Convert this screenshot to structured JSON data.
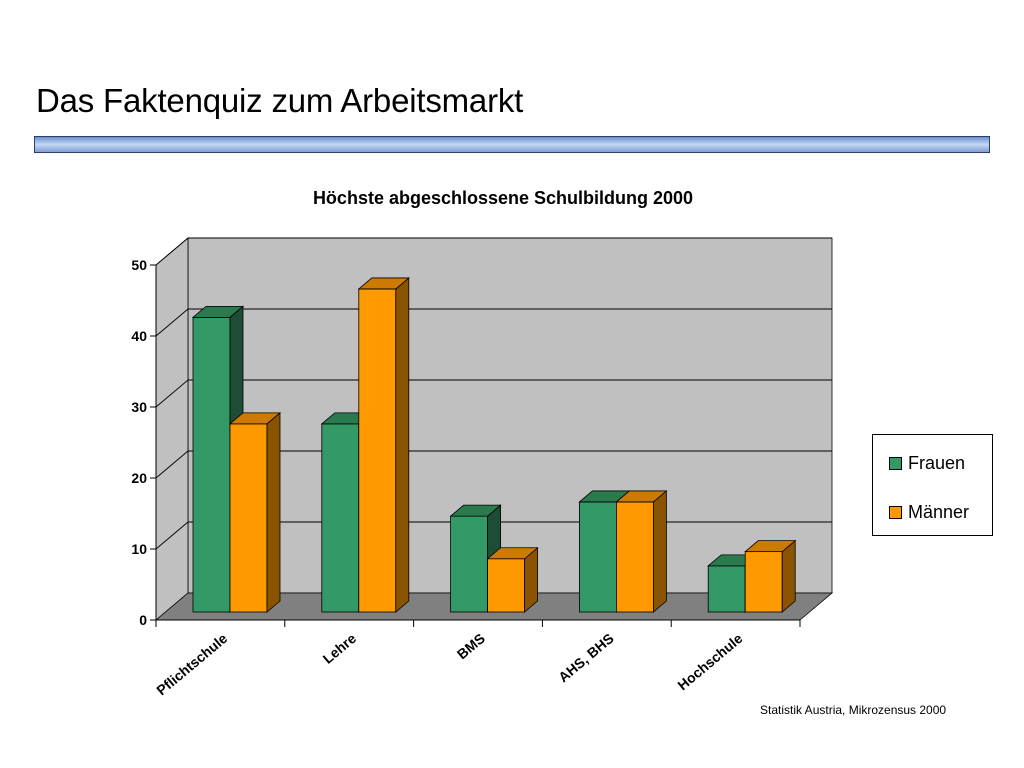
{
  "slide": {
    "title": "Das Faktenquiz zum Arbeitsmarkt",
    "source": "Statistik Austria, Mikrozensus 2000"
  },
  "chart_data": {
    "type": "bar",
    "title": "Höchste abgeschlossene Schulbildung 2000",
    "xlabel": "",
    "ylabel": "",
    "categories": [
      "Pflichtschule",
      "Lehre",
      "BMS",
      "AHS, BHS",
      "Hochschule"
    ],
    "series": [
      {
        "name": "Frauen",
        "values": [
          41.5,
          26.5,
          13.5,
          15.5,
          6.5
        ],
        "color": "#339966"
      },
      {
        "name": "Männer",
        "values": [
          26.5,
          45.5,
          7.5,
          15.5,
          8.5
        ],
        "color": "#FF9900"
      }
    ],
    "ylim": [
      0,
      50
    ],
    "yticks": [
      "0",
      "10",
      "20",
      "30",
      "40",
      "50"
    ],
    "grid": true,
    "legend": "right",
    "style": "3d-clustered-column",
    "colors": {
      "wall": "#C0C0C0",
      "floor": "#808080",
      "frauen_side": "#1D4D35",
      "frauen_top": "#2A7A4E",
      "maenner_side": "#8A5300",
      "maenner_top": "#CC7A00"
    }
  }
}
